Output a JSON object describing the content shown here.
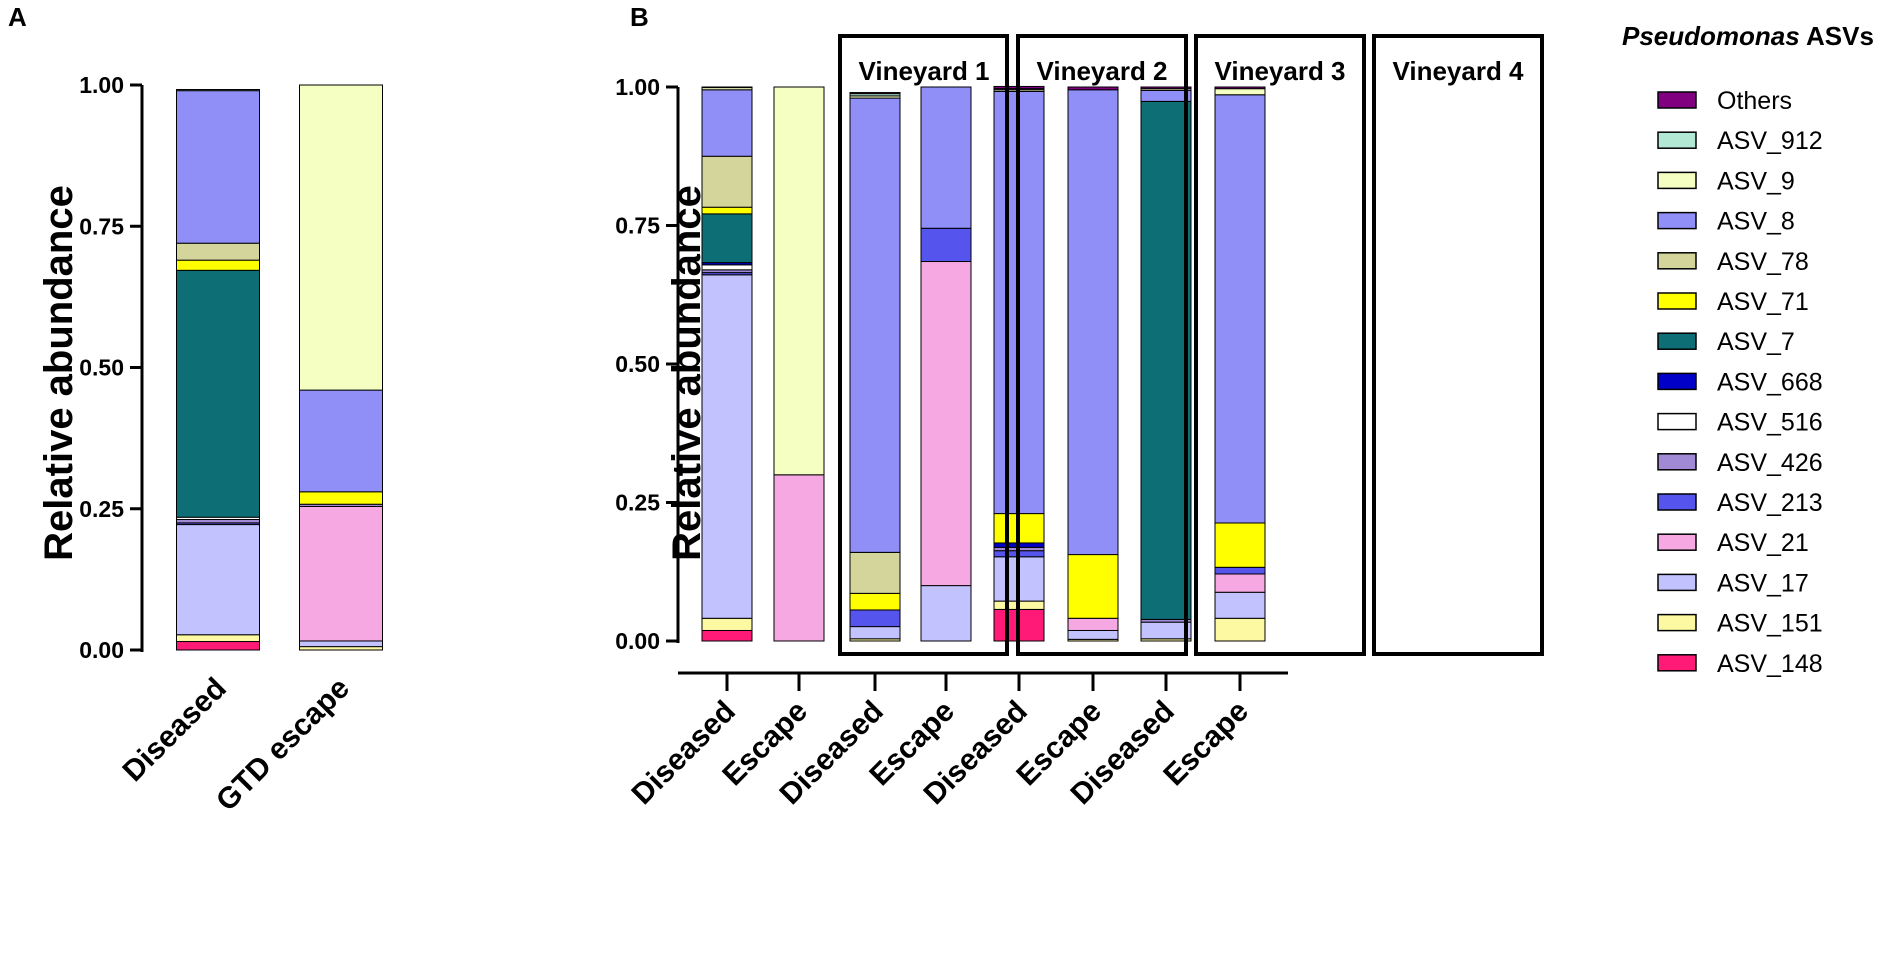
{
  "figure": {
    "panel_a_label": "A",
    "panel_b_label": "B"
  },
  "legend": {
    "title_italic": "Pseudomonas",
    "title_rest": " ASVs",
    "items": [
      {
        "name": "Others",
        "color": "#800080"
      },
      {
        "name": "ASV_912",
        "color": "#b2e8d4"
      },
      {
        "name": "ASV_9",
        "color": "#f5ffc2"
      },
      {
        "name": "ASV_8",
        "color": "#8f8ff7"
      },
      {
        "name": "ASV_78",
        "color": "#d4d59b"
      },
      {
        "name": "ASV_71",
        "color": "#ffff00"
      },
      {
        "name": "ASV_7",
        "color": "#0e6e75"
      },
      {
        "name": "ASV_668",
        "color": "#0000c8"
      },
      {
        "name": "ASV_516",
        "color": "#ffffff"
      },
      {
        "name": "ASV_426",
        "color": "#a08ad6"
      },
      {
        "name": "ASV_213",
        "color": "#5555ee"
      },
      {
        "name": "ASV_21",
        "color": "#f5a8e2"
      },
      {
        "name": "ASV_17",
        "color": "#c2c2ff"
      },
      {
        "name": "ASV_151",
        "color": "#fcf9a2"
      },
      {
        "name": "ASV_148",
        "color": "#ff1a78"
      }
    ]
  },
  "chart_data": [
    {
      "type": "bar",
      "stacked": true,
      "panel": "A",
      "title": "",
      "xlabel": "",
      "ylabel": "Relative abundance",
      "ylim": [
        0,
        1
      ],
      "yticks": [
        "0.00",
        "0.25",
        "0.50",
        "0.75",
        "1.00"
      ],
      "categories": [
        "Diseased",
        "GTD escape"
      ],
      "series": [
        {
          "name": "ASV_148",
          "values": [
            0.015,
            0.0
          ]
        },
        {
          "name": "ASV_151",
          "values": [
            0.012,
            0.006
          ]
        },
        {
          "name": "ASV_17",
          "values": [
            0.195,
            0.01
          ]
        },
        {
          "name": "ASV_21",
          "values": [
            0.0,
            0.238
          ]
        },
        {
          "name": "ASV_213",
          "values": [
            0.003,
            0.0
          ]
        },
        {
          "name": "ASV_426",
          "values": [
            0.006,
            0.004
          ]
        },
        {
          "name": "ASV_516",
          "values": [
            0.004,
            0.0
          ]
        },
        {
          "name": "ASV_668",
          "values": [
            0.0,
            0.0
          ]
        },
        {
          "name": "ASV_7",
          "values": [
            0.437,
            0.0
          ]
        },
        {
          "name": "ASV_71",
          "values": [
            0.018,
            0.022
          ]
        },
        {
          "name": "ASV_78",
          "values": [
            0.03,
            0.0
          ]
        },
        {
          "name": "ASV_8",
          "values": [
            0.27,
            0.18
          ]
        },
        {
          "name": "ASV_9",
          "values": [
            0.0,
            0.54
          ]
        },
        {
          "name": "ASV_912",
          "values": [
            0.002,
            0.0
          ]
        },
        {
          "name": "Others",
          "values": [
            0.0,
            0.0
          ]
        }
      ]
    },
    {
      "type": "bar",
      "stacked": true,
      "panel": "B",
      "title": "",
      "xlabel": "",
      "ylabel": "Relative abundance",
      "ylim": [
        0,
        1
      ],
      "yticks": [
        "0.00",
        "0.25",
        "0.50",
        "0.75",
        "1.00"
      ],
      "groups": [
        "Vineyard 1",
        "Vineyard 2",
        "Vineyard 3",
        "Vineyard 4"
      ],
      "categories": [
        "Diseased",
        "Escape",
        "Diseased",
        "Escape",
        "Diseased",
        "Escape",
        "Diseased",
        "Escape"
      ],
      "series": [
        {
          "name": "ASV_148",
          "values": [
            0.019,
            0.0,
            0.0,
            0.0,
            0.057,
            0.0,
            0.0,
            0.0
          ]
        },
        {
          "name": "ASV_151",
          "values": [
            0.022,
            0.0,
            0.004,
            0.0,
            0.015,
            0.003,
            0.004,
            0.041
          ]
        },
        {
          "name": "ASV_17",
          "values": [
            0.62,
            0.0,
            0.022,
            0.1,
            0.08,
            0.016,
            0.03,
            0.047
          ]
        },
        {
          "name": "ASV_21",
          "values": [
            0.0,
            0.3,
            0.0,
            0.585,
            0.0,
            0.022,
            0.0,
            0.033
          ]
        },
        {
          "name": "ASV_213",
          "values": [
            0.004,
            0.0,
            0.03,
            0.06,
            0.011,
            0.0,
            0.0,
            0.012
          ]
        },
        {
          "name": "ASV_426",
          "values": [
            0.005,
            0.0,
            0.0,
            0.0,
            0.006,
            0.0,
            0.005,
            0.0
          ]
        },
        {
          "name": "ASV_516",
          "values": [
            0.009,
            0.0,
            0.0,
            0.0,
            0.0,
            0.0,
            0.0,
            0.0
          ]
        },
        {
          "name": "ASV_668",
          "values": [
            0.004,
            0.0,
            0.0,
            0.0,
            0.008,
            0.0,
            0.0,
            0.0
          ]
        },
        {
          "name": "ASV_7",
          "values": [
            0.088,
            0.0,
            0.0,
            0.0,
            0.0,
            0.0,
            0.935,
            0.0
          ]
        },
        {
          "name": "ASV_71",
          "values": [
            0.012,
            0.0,
            0.03,
            0.0,
            0.053,
            0.115,
            0.0,
            0.08
          ]
        },
        {
          "name": "ASV_78",
          "values": [
            0.092,
            0.0,
            0.074,
            0.0,
            0.0,
            0.0,
            0.0,
            0.0
          ]
        },
        {
          "name": "ASV_8",
          "values": [
            0.12,
            0.0,
            0.82,
            0.255,
            0.762,
            0.839,
            0.02,
            0.773
          ]
        },
        {
          "name": "ASV_9",
          "values": [
            0.004,
            0.7,
            0.004,
            0.0,
            0.003,
            0.0,
            0.003,
            0.011
          ]
        },
        {
          "name": "ASV_912",
          "values": [
            0.001,
            0.0,
            0.004,
            0.0,
            0.002,
            0.0,
            0.0,
            0.0
          ]
        },
        {
          "name": "Others",
          "values": [
            0.0,
            0.0,
            0.002,
            0.0,
            0.004,
            0.005,
            0.003,
            0.003
          ]
        }
      ]
    }
  ]
}
